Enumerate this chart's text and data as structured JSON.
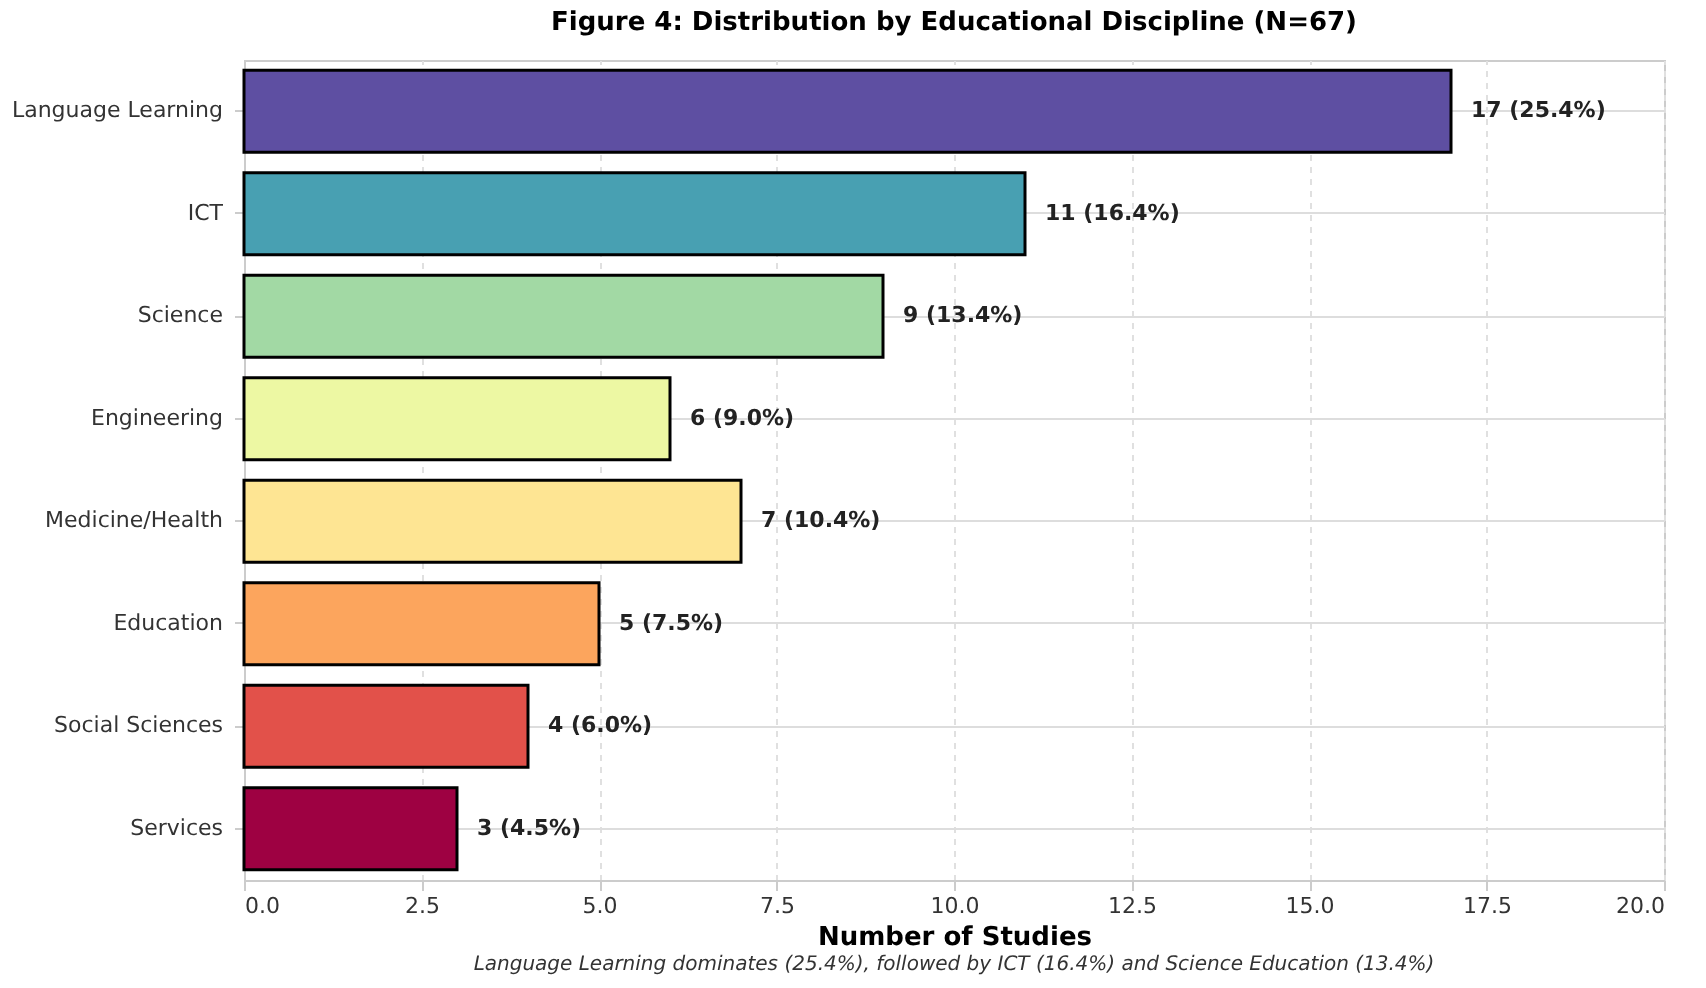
{
  "chart_data": {
    "type": "bar",
    "orientation": "horizontal",
    "title": "Figure 4: Distribution by Educational Discipline (N=67)",
    "xlabel": "Number of Studies",
    "categories": [
      "Language Learning",
      "ICT",
      "Science",
      "Engineering",
      "Medicine/Health",
      "Education",
      "Social Sciences",
      "Services"
    ],
    "values": [
      17,
      11,
      9,
      6,
      7,
      5,
      4,
      3
    ],
    "colors": [
      "#5e4fa2",
      "#48a0b2",
      "#a2d9a4",
      "#edf8a3",
      "#fee593",
      "#fca55d",
      "#e2514a",
      "#9e0142"
    ],
    "value_labels": [
      "17 (25.4%)",
      "11 (16.4%)",
      "9 (13.4%)",
      "6 (9.0%)",
      "7 (10.4%)",
      "5 (7.5%)",
      "4 (6.0%)",
      "3 (4.5%)"
    ],
    "xlim": [
      0,
      20
    ],
    "xticks": [
      {
        "value": 0,
        "label": "0.0"
      },
      2.5,
      {
        "value": 5,
        "label": "5.0"
      },
      7.5,
      {
        "value": 10,
        "label": "10.0"
      },
      12.5,
      {
        "value": 15,
        "label": "15.0"
      },
      17.5,
      {
        "value": 20,
        "label": "20.0"
      }
    ],
    "grid": true,
    "annotations": [
      "Language Learning dominates (25.4%), followed by ICT (16.4%) and Science Education (13.4%)"
    ]
  }
}
